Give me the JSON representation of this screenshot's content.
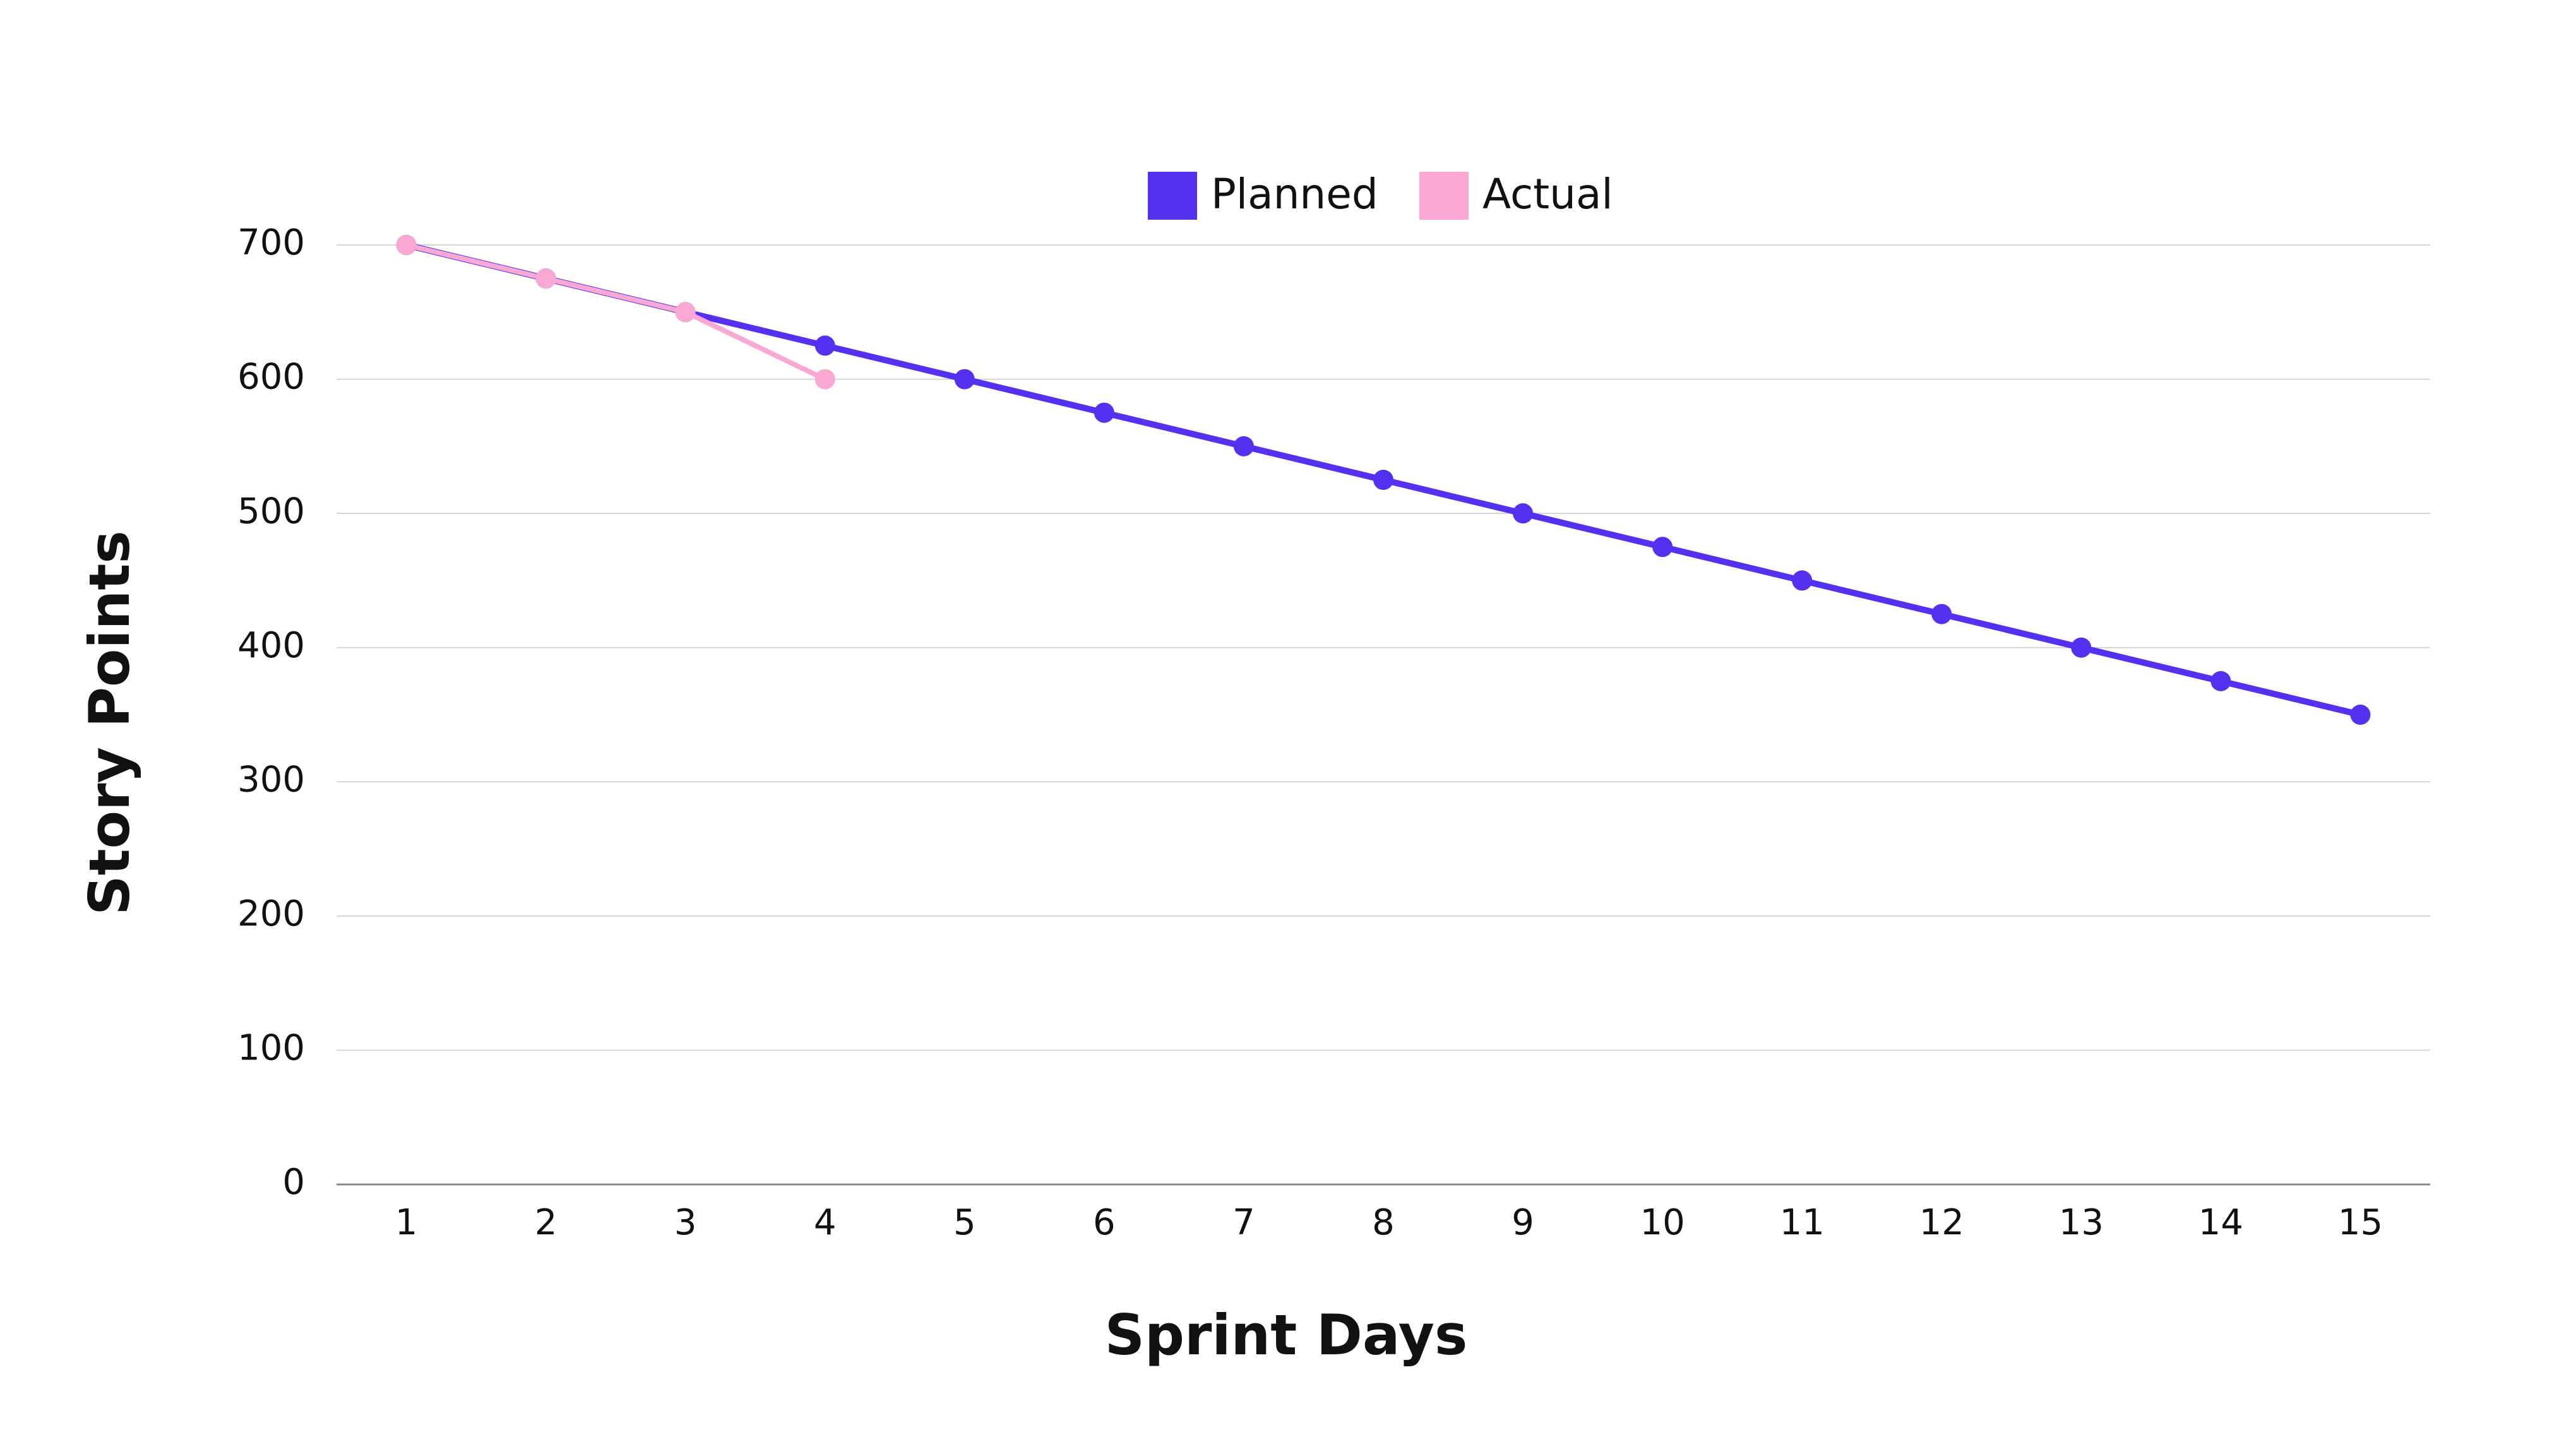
{
  "chart_data": {
    "type": "line",
    "x_label": "Sprint Days",
    "y_label": "Story Points",
    "categories": [
      1,
      2,
      3,
      4,
      5,
      6,
      7,
      8,
      9,
      10,
      11,
      12,
      13,
      14,
      15
    ],
    "series": [
      {
        "name": "Planned",
        "color": "#5530f0",
        "values": [
          700,
          675,
          650,
          625,
          600,
          575,
          550,
          525,
          500,
          475,
          450,
          425,
          400,
          375,
          350
        ]
      },
      {
        "name": "Actual",
        "color": "#f9a8d4",
        "values": [
          700,
          675,
          650,
          600,
          null,
          null,
          null,
          null,
          null,
          null,
          null,
          null,
          null,
          null,
          null
        ]
      }
    ],
    "ylim": [
      0,
      700
    ],
    "yticks": [
      0,
      100,
      200,
      300,
      400,
      500,
      600,
      700
    ],
    "grid": true,
    "legend": "top"
  }
}
